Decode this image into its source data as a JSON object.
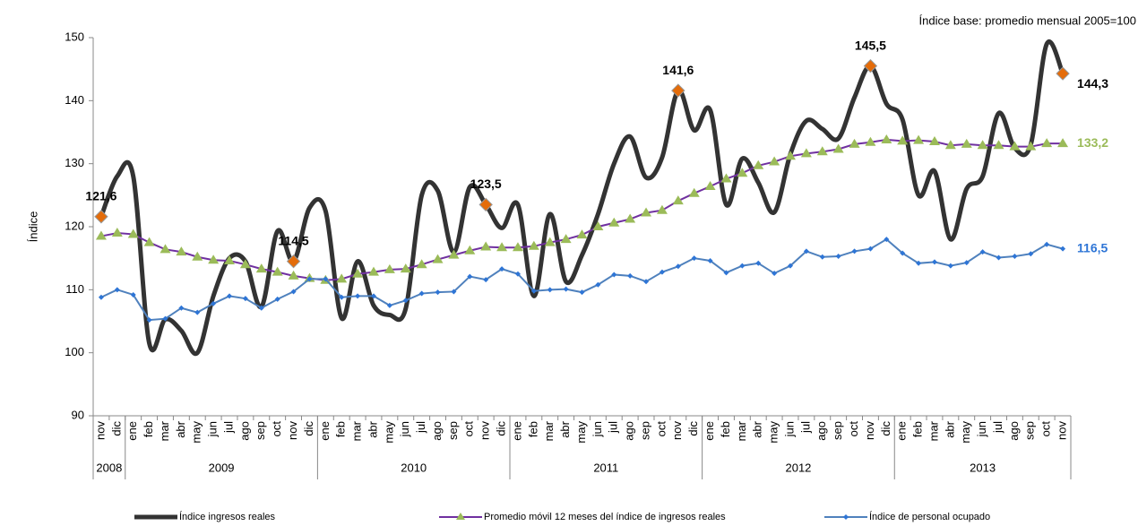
{
  "chart_data": {
    "type": "line",
    "note": "Índice base: promedio mensual 2005=100",
    "y_label": "Índice",
    "category_groups": [
      {
        "label": "2008",
        "categories": [
          "nov",
          "dic"
        ]
      },
      {
        "label": "2009",
        "categories": [
          "ene",
          "feb",
          "mar",
          "abr",
          "may",
          "jun",
          "jul",
          "ago",
          "sep",
          "oct",
          "nov",
          "dic"
        ]
      },
      {
        "label": "2010",
        "categories": [
          "ene",
          "feb",
          "mar",
          "abr",
          "may",
          "jun",
          "jul",
          "ago",
          "sep",
          "oct",
          "nov",
          "dic"
        ]
      },
      {
        "label": "2011",
        "categories": [
          "ene",
          "feb",
          "mar",
          "abr",
          "may",
          "jun",
          "jul",
          "ago",
          "sep",
          "oct",
          "nov",
          "dic"
        ]
      },
      {
        "label": "2012",
        "categories": [
          "ene",
          "feb",
          "mar",
          "abr",
          "may",
          "jun",
          "jul",
          "ago",
          "sep",
          "oct",
          "nov",
          "dic"
        ]
      },
      {
        "label": "2013",
        "categories": [
          "ene",
          "feb",
          "mar",
          "abr",
          "may",
          "jun",
          "jul",
          "ago",
          "sep",
          "oct",
          "nov"
        ]
      }
    ],
    "ylim": [
      90,
      150
    ],
    "yticks": [
      90,
      100,
      110,
      120,
      130,
      140,
      150
    ],
    "highlight_color": "#e46c0a",
    "series": [
      {
        "name": "Índice ingresos reales",
        "color": "#333333",
        "smooth": true,
        "label_color": "#000000",
        "values": [
          121.6,
          128,
          128,
          101.5,
          105.3,
          103.5,
          100,
          109,
          115,
          114.5,
          107.3,
          119.3,
          114.5,
          123,
          122.5,
          105.5,
          114.5,
          107.5,
          106,
          107,
          125,
          125.7,
          116,
          126.3,
          123.5,
          119.8,
          123.5,
          109,
          122,
          111.3,
          115.5,
          122,
          130,
          134.3,
          127.8,
          131,
          141.6,
          135.3,
          138.5,
          123.5,
          130.8,
          127,
          122.3,
          131.5,
          136.8,
          135.5,
          134,
          140.5,
          145.5,
          139.5,
          137,
          125,
          128.8,
          118,
          126,
          128,
          138,
          132.5,
          133,
          149,
          144.3
        ],
        "value_labels": [
          "121,6",
          null,
          null,
          null,
          null,
          null,
          null,
          null,
          null,
          null,
          null,
          null,
          "114,5",
          null,
          null,
          null,
          null,
          null,
          null,
          null,
          null,
          null,
          null,
          null,
          "123,5",
          null,
          null,
          null,
          null,
          null,
          null,
          null,
          null,
          null,
          null,
          null,
          "141,6",
          null,
          null,
          null,
          null,
          null,
          null,
          null,
          null,
          null,
          null,
          null,
          "145,5",
          null,
          null,
          null,
          null,
          null,
          null,
          null,
          null,
          null,
          null,
          null,
          "144,3"
        ]
      },
      {
        "name": "Promedio móvil 12 meses del índice de ingresos reales",
        "color": "#7030a0",
        "marker_color": "#9bbb59",
        "label_color": "#9bbb59",
        "values": [
          118.5,
          119,
          118.8,
          117.5,
          116.4,
          116,
          115.2,
          114.7,
          114.6,
          114,
          113.3,
          112.8,
          112.2,
          111.8,
          111.5,
          111.7,
          112.5,
          112.8,
          113.2,
          113.3,
          114,
          114.8,
          115.5,
          116.2,
          116.8,
          116.7,
          116.7,
          116.9,
          117.5,
          118,
          118.7,
          120,
          120.6,
          121.2,
          122.2,
          122.6,
          124.1,
          125.3,
          126.4,
          127.6,
          128.5,
          129.7,
          130.3,
          131.2,
          131.6,
          131.9,
          132.3,
          133.1,
          133.4,
          133.8,
          133.6,
          133.7,
          133.5,
          132.9,
          133.1,
          132.9,
          132.9,
          132.7,
          132.7,
          133.2,
          133.2
        ],
        "value_labels": [
          null,
          null,
          null,
          null,
          null,
          null,
          null,
          null,
          null,
          null,
          null,
          null,
          null,
          null,
          null,
          null,
          null,
          null,
          null,
          null,
          null,
          null,
          null,
          null,
          null,
          null,
          null,
          null,
          null,
          null,
          null,
          null,
          null,
          null,
          null,
          null,
          null,
          null,
          null,
          null,
          null,
          null,
          null,
          null,
          null,
          null,
          null,
          null,
          null,
          null,
          null,
          null,
          null,
          null,
          null,
          null,
          null,
          null,
          null,
          null,
          "133,2"
        ]
      },
      {
        "name": "Índice de personal ocupado",
        "color": "#4f81bd",
        "marker_color": "#2e75d6",
        "label_color": "#2e75d6",
        "values": [
          108.8,
          110,
          109.2,
          105.2,
          105.4,
          107.1,
          106.4,
          107.8,
          109,
          108.6,
          107.1,
          108.5,
          109.7,
          111.7,
          111.7,
          108.8,
          109,
          109,
          107.5,
          108.3,
          109.4,
          109.6,
          109.7,
          112.1,
          111.6,
          113.3,
          112.5,
          109.8,
          110,
          110.1,
          109.6,
          110.8,
          112.4,
          112.2,
          111.3,
          112.8,
          113.7,
          115,
          114.6,
          112.7,
          113.8,
          114.2,
          112.6,
          113.8,
          116.1,
          115.2,
          115.3,
          116.1,
          116.5,
          118,
          115.8,
          114.2,
          114.4,
          113.8,
          114.3,
          116,
          115.1,
          115.3,
          115.7,
          117.2,
          116.5
        ],
        "value_labels": [
          null,
          null,
          null,
          null,
          null,
          null,
          null,
          null,
          null,
          null,
          null,
          null,
          null,
          null,
          null,
          null,
          null,
          null,
          null,
          null,
          null,
          null,
          null,
          null,
          null,
          null,
          null,
          null,
          null,
          null,
          null,
          null,
          null,
          null,
          null,
          null,
          null,
          null,
          null,
          null,
          null,
          null,
          null,
          null,
          null,
          null,
          null,
          null,
          null,
          null,
          null,
          null,
          null,
          null,
          null,
          null,
          null,
          null,
          null,
          null,
          "116,5"
        ]
      }
    ]
  }
}
